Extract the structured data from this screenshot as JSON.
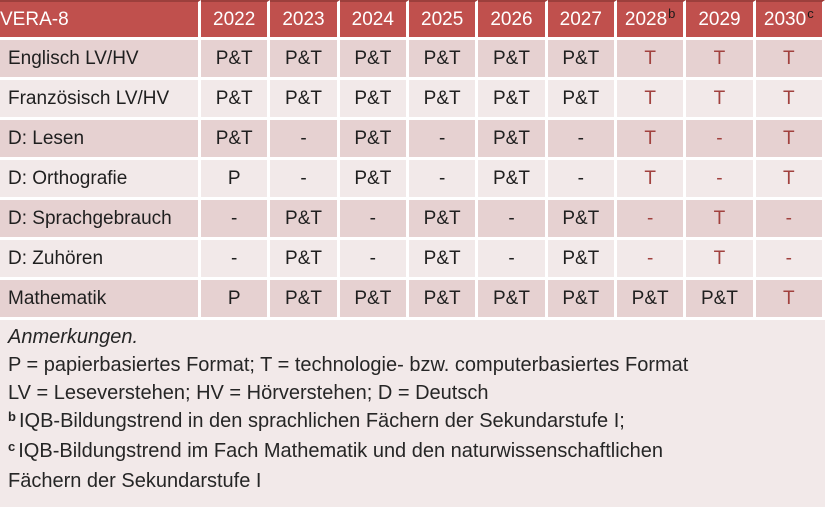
{
  "colors": {
    "header_bg": "#C0504D",
    "header_text": "#FFFFFF",
    "header_top_border": "#9C3F3C",
    "band_dark": "#E6D1D1",
    "band_light": "#F2E9E9",
    "red_text": "#A1413E",
    "black_text": "#1F1F1F"
  },
  "table": {
    "corner_label": "VERA-8",
    "years": [
      {
        "label": "2022",
        "sup": ""
      },
      {
        "label": "2023",
        "sup": ""
      },
      {
        "label": "2024",
        "sup": ""
      },
      {
        "label": "2025",
        "sup": ""
      },
      {
        "label": "2026",
        "sup": ""
      },
      {
        "label": "2027",
        "sup": ""
      },
      {
        "label": "2028",
        "sup": "b"
      },
      {
        "label": "2029",
        "sup": ""
      },
      {
        "label": "2030",
        "sup": "c"
      }
    ],
    "rows": [
      {
        "label": "Englisch LV/HV",
        "band": "dark",
        "cells": [
          {
            "t": "P&T"
          },
          {
            "t": "P&T"
          },
          {
            "t": "P&T"
          },
          {
            "t": "P&T"
          },
          {
            "t": "P&T"
          },
          {
            "t": "P&T"
          },
          {
            "t": "T",
            "red": true
          },
          {
            "t": "T",
            "red": true
          },
          {
            "t": "T",
            "red": true
          }
        ]
      },
      {
        "label": "Französisch LV/HV",
        "band": "light",
        "cells": [
          {
            "t": "P&T"
          },
          {
            "t": "P&T"
          },
          {
            "t": "P&T"
          },
          {
            "t": "P&T"
          },
          {
            "t": "P&T"
          },
          {
            "t": "P&T"
          },
          {
            "t": "T",
            "red": true
          },
          {
            "t": "T",
            "red": true
          },
          {
            "t": "T",
            "red": true
          }
        ]
      },
      {
        "label": "D: Lesen",
        "band": "dark",
        "cells": [
          {
            "t": "P&T"
          },
          {
            "t": "-"
          },
          {
            "t": "P&T"
          },
          {
            "t": "-"
          },
          {
            "t": "P&T"
          },
          {
            "t": "-"
          },
          {
            "t": "T",
            "red": true
          },
          {
            "t": "-",
            "red": true
          },
          {
            "t": "T",
            "red": true
          }
        ]
      },
      {
        "label": "D: Orthografie",
        "band": "light",
        "cells": [
          {
            "t": "P"
          },
          {
            "t": "-"
          },
          {
            "t": "P&T"
          },
          {
            "t": "-"
          },
          {
            "t": "P&T"
          },
          {
            "t": "-"
          },
          {
            "t": "T",
            "red": true
          },
          {
            "t": "-",
            "red": true
          },
          {
            "t": "T",
            "red": true
          }
        ]
      },
      {
        "label": "D: Sprachgebrauch",
        "band": "dark",
        "cells": [
          {
            "t": "-"
          },
          {
            "t": "P&T"
          },
          {
            "t": "-"
          },
          {
            "t": "P&T"
          },
          {
            "t": "-"
          },
          {
            "t": "P&T"
          },
          {
            "t": "-",
            "red": true
          },
          {
            "t": "T",
            "red": true
          },
          {
            "t": "-",
            "red": true
          }
        ]
      },
      {
        "label": "D: Zuhören",
        "band": "light",
        "cells": [
          {
            "t": "-"
          },
          {
            "t": "P&T"
          },
          {
            "t": "-"
          },
          {
            "t": "P&T"
          },
          {
            "t": "-"
          },
          {
            "t": "P&T"
          },
          {
            "t": "-",
            "red": true
          },
          {
            "t": "T",
            "red": true
          },
          {
            "t": "-",
            "red": true
          }
        ]
      },
      {
        "label": "Mathematik",
        "band": "dark",
        "cells": [
          {
            "t": "P"
          },
          {
            "t": "P&T"
          },
          {
            "t": "P&T"
          },
          {
            "t": "P&T"
          },
          {
            "t": "P&T"
          },
          {
            "t": "P&T"
          },
          {
            "t": "P&T"
          },
          {
            "t": "P&T"
          },
          {
            "t": "T",
            "red": true
          }
        ]
      }
    ]
  },
  "notes": {
    "lines": [
      {
        "text": "Anmerkungen.",
        "italic": true,
        "sup": ""
      },
      {
        "text": "P = papierbasiertes Format; T = technologie- bzw. computerbasiertes Format",
        "italic": false,
        "sup": ""
      },
      {
        "text": "LV = Leseverstehen; HV = Hörverstehen; D = Deutsch",
        "italic": false,
        "sup": ""
      },
      {
        "text": "IQB-Bildungstrend in den sprachlichen Fächern der Sekundarstufe I;",
        "italic": false,
        "sup": "b"
      },
      {
        "text": "IQB-Bildungstrend im Fach Mathematik und den naturwissenschaftlichen Fächern der Sekundarstufe I",
        "italic": false,
        "sup": "c"
      }
    ]
  }
}
